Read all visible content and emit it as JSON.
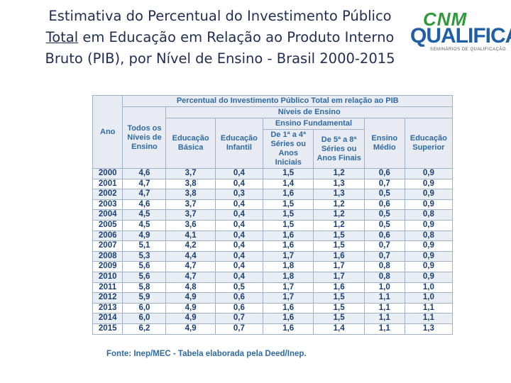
{
  "title": {
    "part1": "Estimativa do Percentual do Investimento Público ",
    "underlined": "Total",
    "part2": " em Educação em Relação ao Produto Interno Bruto (PIB), por Nível de Ensino - Brasil 2000-2015"
  },
  "logo": {
    "top": "CNM",
    "main": "QUALIFICA",
    "sub": "SEMINÁRIOS DE QUALIFICAÇÃO"
  },
  "table": {
    "caption": "Percentual do Investimento Público Total em relação ao PIB",
    "header_ano": "Ano",
    "header_todos": "Todos os Níveis de Ensino",
    "header_niveis": "Níveis de Ensino",
    "header_basica": "Educação Básica",
    "header_infantil": "Educação Infantil",
    "header_fundamental": "Ensino Fundamental",
    "header_f1": "De 1ª a 4ª Séries ou Anos Iniciais",
    "header_f2": "De 5ª a 8ª Séries ou Anos Finais",
    "header_medio": "Ensino Médio",
    "header_superior": "Educação Superior",
    "rows": [
      [
        "2000",
        "4,6",
        "3,7",
        "0,4",
        "1,5",
        "1,2",
        "0,6",
        "0,9"
      ],
      [
        "2001",
        "4,7",
        "3,8",
        "0,4",
        "1,4",
        "1,3",
        "0,7",
        "0,9"
      ],
      [
        "2002",
        "4,7",
        "3,8",
        "0,3",
        "1,6",
        "1,3",
        "0,5",
        "0,9"
      ],
      [
        "2003",
        "4,6",
        "3,7",
        "0,4",
        "1,5",
        "1,2",
        "0,6",
        "0,9"
      ],
      [
        "2004",
        "4,5",
        "3,7",
        "0,4",
        "1,5",
        "1,2",
        "0,5",
        "0,8"
      ],
      [
        "2005",
        "4,5",
        "3,6",
        "0,4",
        "1,5",
        "1,2",
        "0,5",
        "0,9"
      ],
      [
        "2006",
        "4,9",
        "4,1",
        "0,4",
        "1,6",
        "1,5",
        "0,6",
        "0,8"
      ],
      [
        "2007",
        "5,1",
        "4,2",
        "0,4",
        "1,6",
        "1,5",
        "0,7",
        "0,9"
      ],
      [
        "2008",
        "5,3",
        "4,4",
        "0,4",
        "1,7",
        "1,6",
        "0,7",
        "0,9"
      ],
      [
        "2009",
        "5,6",
        "4,7",
        "0,4",
        "1,8",
        "1,7",
        "0,8",
        "0,9"
      ],
      [
        "2010",
        "5,6",
        "4,7",
        "0,4",
        "1,8",
        "1,7",
        "0,8",
        "0,9"
      ],
      [
        "2011",
        "5,8",
        "4,8",
        "0,5",
        "1,7",
        "1,6",
        "1,0",
        "1,0"
      ],
      [
        "2012",
        "5,9",
        "4,9",
        "0,6",
        "1,7",
        "1,5",
        "1,1",
        "1,0"
      ],
      [
        "2013",
        "6,0",
        "4,9",
        "0,6",
        "1,6",
        "1,5",
        "1,1",
        "1,1"
      ],
      [
        "2014",
        "6,0",
        "4,9",
        "0,7",
        "1,6",
        "1,5",
        "1,1",
        "1,1"
      ],
      [
        "2015",
        "6,2",
        "4,9",
        "0,7",
        "1,6",
        "1,4",
        "1,1",
        "1,3"
      ]
    ]
  },
  "source": "Fonte: Inep/MEC - Tabela elaborada pela Deed/Inep."
}
